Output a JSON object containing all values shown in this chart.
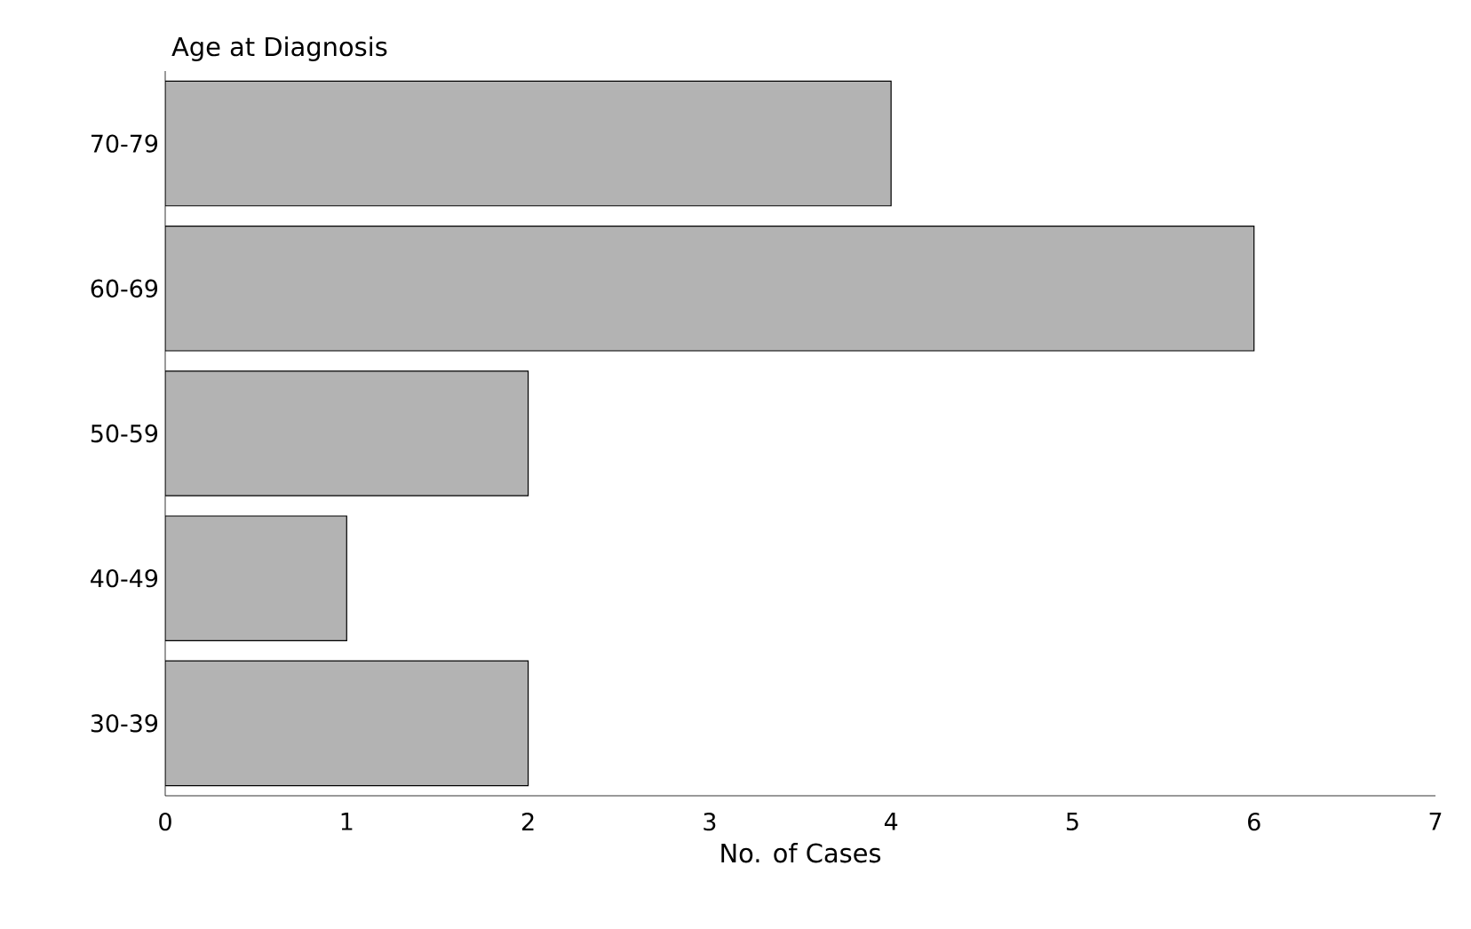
{
  "chart_data": {
    "type": "bar",
    "orientation": "horizontal",
    "ylabel": "Age at Diagnosis",
    "xlabel": "No. of Cases",
    "categories": [
      "70-79",
      "60-69",
      "50-59",
      "40-49",
      "30-39"
    ],
    "values": [
      4,
      6,
      2,
      1,
      2
    ],
    "color": "#b3b3b3",
    "xlim": [
      0,
      7
    ],
    "xticks": [
      0,
      1,
      2,
      3,
      4,
      5,
      6,
      7
    ]
  }
}
